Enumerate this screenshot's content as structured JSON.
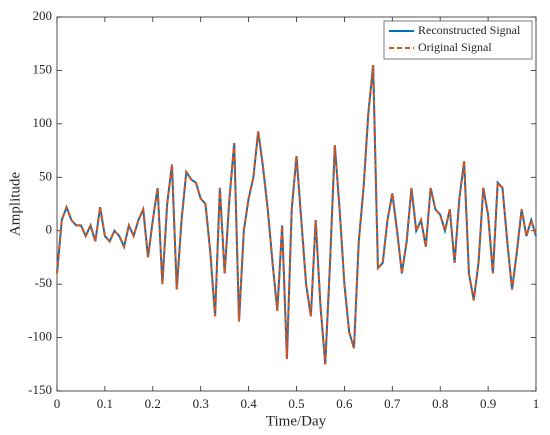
{
  "chart_data": {
    "type": "line",
    "xlabel": "Time/Day",
    "ylabel": "Amplitude",
    "x": [
      0,
      0.01,
      0.02,
      0.03,
      0.04,
      0.05,
      0.06,
      0.07,
      0.08,
      0.09,
      0.1,
      0.11,
      0.12,
      0.13,
      0.14,
      0.15,
      0.16,
      0.17,
      0.18,
      0.19,
      0.2,
      0.21,
      0.22,
      0.23,
      0.24,
      0.25,
      0.26,
      0.27,
      0.28,
      0.29,
      0.3,
      0.31,
      0.32,
      0.33,
      0.34,
      0.35,
      0.36,
      0.37,
      0.38,
      0.39,
      0.4,
      0.41,
      0.42,
      0.43,
      0.44,
      0.45,
      0.46,
      0.47,
      0.48,
      0.49,
      0.5,
      0.51,
      0.52,
      0.53,
      0.54,
      0.55,
      0.56,
      0.57,
      0.58,
      0.59,
      0.6,
      0.61,
      0.62,
      0.63,
      0.64,
      0.65,
      0.66,
      0.67,
      0.68,
      0.69,
      0.7,
      0.71,
      0.72,
      0.73,
      0.74,
      0.75,
      0.76,
      0.77,
      0.78,
      0.79,
      0.8,
      0.81,
      0.82,
      0.83,
      0.84,
      0.85,
      0.86,
      0.87,
      0.88,
      0.89,
      0.9,
      0.91,
      0.92,
      0.93,
      0.94,
      0.95,
      0.96,
      0.97,
      0.98,
      0.99,
      1
    ],
    "series": [
      {
        "name": "Reconstructed Signal",
        "color": "#0072bd",
        "dash": false,
        "values": [
          -40,
          10,
          22,
          10,
          5,
          5,
          -5,
          5,
          -10,
          22,
          -5,
          -10,
          0,
          -5,
          -15,
          5,
          -5,
          10,
          20,
          -25,
          10,
          40,
          -50,
          25,
          62,
          -55,
          10,
          55,
          48,
          45,
          30,
          25,
          -20,
          -80,
          40,
          -40,
          30,
          82,
          -85,
          0,
          30,
          50,
          93,
          60,
          20,
          -30,
          -75,
          5,
          -120,
          20,
          70,
          10,
          -50,
          -80,
          10,
          -70,
          -125,
          -30,
          80,
          20,
          -50,
          -95,
          -110,
          -10,
          40,
          110,
          155,
          -35,
          -30,
          10,
          35,
          0,
          -40,
          -10,
          40,
          0,
          10,
          -15,
          40,
          20,
          15,
          0,
          20,
          -30,
          30,
          65,
          -40,
          -65,
          -30,
          40,
          15,
          -40,
          45,
          40,
          -10,
          -55,
          -20,
          20,
          -5,
          10,
          -5
        ]
      },
      {
        "name": "Original Signal",
        "color": "#d95319",
        "dash": true,
        "values": [
          -40,
          10,
          22,
          10,
          5,
          5,
          -5,
          5,
          -10,
          22,
          -5,
          -10,
          0,
          -5,
          -15,
          5,
          -5,
          10,
          20,
          -25,
          10,
          40,
          -50,
          25,
          62,
          -55,
          10,
          55,
          48,
          45,
          30,
          25,
          -20,
          -80,
          40,
          -40,
          30,
          82,
          -85,
          0,
          30,
          50,
          93,
          60,
          20,
          -30,
          -75,
          5,
          -120,
          20,
          70,
          10,
          -50,
          -80,
          10,
          -70,
          -125,
          -30,
          80,
          20,
          -50,
          -95,
          -110,
          -10,
          40,
          110,
          155,
          -35,
          -30,
          10,
          35,
          0,
          -40,
          -10,
          40,
          0,
          10,
          -15,
          40,
          20,
          15,
          0,
          20,
          -30,
          30,
          65,
          -40,
          -65,
          -30,
          40,
          15,
          -40,
          45,
          40,
          -10,
          -55,
          -20,
          20,
          -5,
          10,
          -5
        ]
      }
    ],
    "xlim": [
      0,
      1
    ],
    "xticks": [
      0,
      0.1,
      0.2,
      0.3,
      0.4,
      0.5,
      0.6,
      0.7,
      0.8,
      0.9,
      1
    ],
    "ylim": [
      -150,
      200
    ],
    "yticks": [
      -150,
      -100,
      -50,
      0,
      50,
      100,
      150,
      200
    ],
    "legend": "top-right",
    "grid": false
  }
}
